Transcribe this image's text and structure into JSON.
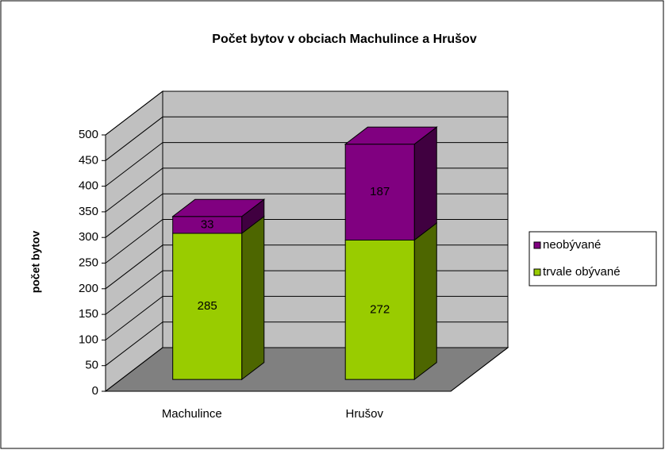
{
  "chart_data": {
    "type": "bar3d_stacked",
    "title": "Počet bytov v obciach Machulince a Hrušov",
    "y_label": "počet bytov",
    "categories": [
      "Machulince",
      "Hrušov"
    ],
    "series": [
      {
        "name": "trvale obývané",
        "color": "#99cc00",
        "values": [
          285,
          272
        ]
      },
      {
        "name": "neobývané",
        "color": "#800080",
        "values": [
          33,
          187
        ]
      }
    ],
    "ylim": [
      0,
      500
    ],
    "yticks": [
      0,
      50,
      100,
      150,
      200,
      250,
      300,
      350,
      400,
      450,
      500
    ],
    "grid": true,
    "legend": "right"
  }
}
